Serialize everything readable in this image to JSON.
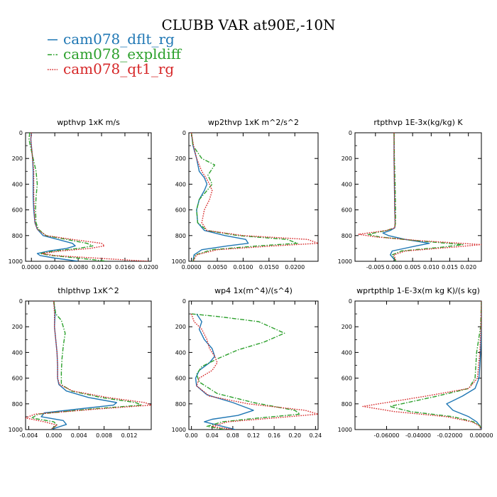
{
  "title": "CLUBB VAR at90E,-10N",
  "legend": [
    {
      "label": "cam078_dflt_rg",
      "color": "#1f77b4",
      "dash": "solid"
    },
    {
      "label": "cam078_expldiff",
      "color": "#2ca02c",
      "dash": "dashdot"
    },
    {
      "label": "cam078_qt1_rg",
      "color": "#d62728",
      "dash": "dotted"
    }
  ],
  "chart_data": [
    {
      "type": "line",
      "title": "wpthvp  1xK m/s",
      "xlim": [
        -0.001,
        0.0205
      ],
      "ylim": [
        1000,
        0
      ],
      "xticks": [
        "0.0000",
        "0.0040",
        "0.0080",
        "0.0120",
        "0.0160",
        "0.0200"
      ],
      "xtick_values": [
        0,
        0.004,
        0.008,
        0.012,
        0.016,
        0.02
      ],
      "yticks": [
        "0",
        "200",
        "400",
        "600",
        "800",
        "1000"
      ],
      "ytick_values": [
        0,
        200,
        400,
        600,
        800,
        1000
      ],
      "series": [
        {
          "name": "cam078_dflt_rg",
          "x": [
            0,
            -0.0001,
            0,
            0.0002,
            0.0003,
            0.0003,
            0.0003,
            0.0004,
            0.0006,
            0.001,
            0.002,
            0.0045,
            0.007,
            0.0075,
            0.006,
            0.003,
            0.001,
            0.0015,
            0.004,
            0.008
          ],
          "y": [
            0,
            50,
            100,
            200,
            300,
            400,
            500,
            600,
            700,
            750,
            800,
            830,
            860,
            880,
            900,
            920,
            940,
            955,
            975,
            1000
          ]
        },
        {
          "name": "cam078_expldiff",
          "x": [
            -0.0003,
            -0.0004,
            -0.0002,
            0.0003,
            0.0008,
            0.001,
            0.0008,
            0.0007,
            0.0008,
            0.0012,
            0.0025,
            0.006,
            0.0095,
            0.0105,
            0.008,
            0.004,
            0.0015,
            0.0035,
            0.008,
            0.013
          ],
          "y": [
            0,
            50,
            100,
            200,
            300,
            400,
            500,
            600,
            700,
            750,
            800,
            830,
            860,
            880,
            900,
            920,
            940,
            955,
            975,
            1000
          ]
        },
        {
          "name": "cam078_qt1_rg",
          "x": [
            0,
            -0.0001,
            0,
            0.0002,
            0.0004,
            0.0004,
            0.0004,
            0.0005,
            0.0006,
            0.001,
            0.0025,
            0.007,
            0.012,
            0.0125,
            0.01,
            0.005,
            0.0018,
            0.004,
            0.011,
            0.02
          ],
          "y": [
            0,
            50,
            100,
            200,
            300,
            400,
            500,
            600,
            700,
            750,
            800,
            830,
            860,
            880,
            900,
            920,
            940,
            955,
            975,
            1000
          ]
        }
      ]
    },
    {
      "type": "line",
      "title": "wp2thvp  1xK m^2/s^2",
      "xlim": [
        -0.0005,
        0.0245
      ],
      "ylim": [
        1000,
        0
      ],
      "xticks": [
        "0.0000",
        "0.0050",
        "0.0100",
        "0.0150",
        "0.0200"
      ],
      "xtick_values": [
        0,
        0.005,
        0.01,
        0.015,
        0.02
      ],
      "yticks": [
        "0",
        "200",
        "400",
        "600",
        "800",
        "1000"
      ],
      "ytick_values": [
        0,
        200,
        400,
        600,
        800,
        1000
      ],
      "series": [
        {
          "name": "cam078_dflt_rg",
          "x": [
            0,
            0.0003,
            0.001,
            0.0015,
            0.0025,
            0.003,
            0.0025,
            0.0015,
            0.001,
            0.0012,
            0.0025,
            0.0065,
            0.0105,
            0.011,
            0.007,
            0.002,
            0.0005,
            0.0003
          ],
          "y": [
            0,
            100,
            200,
            300,
            350,
            400,
            450,
            520,
            600,
            700,
            760,
            800,
            830,
            860,
            880,
            910,
            950,
            1000
          ]
        },
        {
          "name": "cam078_expldiff",
          "x": [
            0,
            0.0003,
            0.002,
            0.0045,
            0.0032,
            0.004,
            0.003,
            0.0015,
            0.001,
            0.0012,
            0.003,
            0.009,
            0.0185,
            0.0205,
            0.013,
            0.004,
            0.0008,
            0.0003
          ],
          "y": [
            0,
            100,
            200,
            250,
            330,
            400,
            450,
            520,
            600,
            700,
            760,
            800,
            830,
            860,
            880,
            910,
            950,
            1000
          ]
        },
        {
          "name": "cam078_qt1_rg",
          "x": [
            0,
            0.0004,
            0.001,
            0.002,
            0.0028,
            0.0035,
            0.004,
            0.0035,
            0.0025,
            0.002,
            0.003,
            0.01,
            0.0225,
            0.0245,
            0.016,
            0.005,
            0.001,
            0.0003
          ],
          "y": [
            0,
            100,
            200,
            300,
            350,
            400,
            450,
            520,
            600,
            700,
            760,
            800,
            830,
            860,
            880,
            910,
            950,
            1000
          ]
        }
      ]
    },
    {
      "type": "line",
      "title": "rtpthvp  1E-3x(kg/kg) K",
      "xlim": [
        -0.0105,
        0.0235
      ],
      "ylim": [
        1000,
        0
      ],
      "xticks": [
        "-0.005",
        "0.000",
        "0.005",
        "0.010",
        "0.015",
        "0.020"
      ],
      "xtick_values": [
        -0.005,
        0,
        0.005,
        0.01,
        0.015,
        0.02
      ],
      "yticks": [
        "0",
        "200",
        "400",
        "600",
        "800",
        "1000"
      ],
      "ytick_values": [
        0,
        200,
        400,
        600,
        800,
        1000
      ],
      "series": [
        {
          "name": "cam078_dflt_rg",
          "x": [
            0,
            0,
            0.0001,
            0.0002,
            0.0003,
            0.0002,
            -0.001,
            -0.003,
            -0.0015,
            0.003,
            0.0095,
            0.006,
            -0.0005,
            -0.001,
            0.0005
          ],
          "y": [
            0,
            200,
            400,
            600,
            700,
            740,
            760,
            780,
            800,
            830,
            860,
            880,
            920,
            950,
            1000
          ]
        },
        {
          "name": "cam078_expldiff",
          "x": [
            0,
            0.0001,
            0.0003,
            0.0004,
            0.0004,
            0.0002,
            -0.002,
            -0.007,
            -0.004,
            0.006,
            0.0185,
            0.013,
            0.002,
            -0.0005,
            0.0005
          ],
          "y": [
            0,
            200,
            400,
            600,
            700,
            740,
            760,
            790,
            810,
            840,
            870,
            890,
            920,
            950,
            1000
          ]
        },
        {
          "name": "cam078_qt1_rg",
          "x": [
            0,
            0,
            0.0001,
            0.0002,
            0.0003,
            0.0002,
            -0.002,
            -0.0095,
            -0.005,
            0.007,
            0.0235,
            0.016,
            0.003,
            0,
            0.0005
          ],
          "y": [
            0,
            200,
            400,
            600,
            700,
            740,
            760,
            790,
            810,
            840,
            870,
            890,
            920,
            950,
            1000
          ]
        }
      ]
    },
    {
      "type": "line",
      "title": "thlpthvp  1xK^2",
      "xlim": [
        -0.0045,
        0.0155
      ],
      "ylim": [
        1000,
        0
      ],
      "xticks": [
        "-0.004",
        "0.000",
        "0.004",
        "0.008",
        "0.012"
      ],
      "xtick_values": [
        -0.004,
        0,
        0.004,
        0.008,
        0.012
      ],
      "yticks": [
        "0",
        "200",
        "400",
        "600",
        "800",
        "1000"
      ],
      "ytick_values": [
        0,
        200,
        400,
        600,
        800,
        1000
      ],
      "series": [
        {
          "name": "cam078_dflt_rg",
          "x": [
            0,
            0.0002,
            0.0001,
            0.0003,
            0.0005,
            0.0006,
            0.0006,
            0.0008,
            0.002,
            0.0055,
            0.01,
            0.0095,
            0.004,
            -0.0015,
            -0.002,
            0.0015,
            0.002,
            -0.0005
          ],
          "y": [
            0,
            100,
            200,
            300,
            400,
            500,
            600,
            650,
            700,
            750,
            790,
            810,
            840,
            870,
            900,
            930,
            960,
            1000
          ]
        },
        {
          "name": "cam078_expldiff",
          "x": [
            0,
            0.0003,
            0.0012,
            0.0018,
            0.0015,
            0.0013,
            0.0012,
            0.0012,
            0.0028,
            0.0075,
            0.013,
            0.014,
            0.006,
            -0.0025,
            -0.0035,
            0,
            0.0005,
            -0.0005
          ],
          "y": [
            0,
            100,
            150,
            250,
            350,
            450,
            550,
            650,
            700,
            750,
            790,
            810,
            840,
            880,
            910,
            940,
            965,
            1000
          ]
        },
        {
          "name": "cam078_qt1_rg",
          "x": [
            0,
            0.0001,
            0.0001,
            0.0003,
            0.0005,
            0.0006,
            0.0006,
            0.0009,
            0.003,
            0.0085,
            0.0145,
            0.0155,
            0.007,
            -0.003,
            -0.0045,
            -0.0015,
            0.0005,
            -0.0005
          ],
          "y": [
            0,
            100,
            200,
            300,
            400,
            500,
            600,
            650,
            700,
            750,
            790,
            810,
            840,
            880,
            910,
            940,
            965,
            1000
          ]
        }
      ]
    },
    {
      "type": "line",
      "title": "wp4  1x(m^4)/(s^4)",
      "xlim": [
        -0.005,
        0.245
      ],
      "ylim": [
        1000,
        0
      ],
      "xticks": [
        "0.00",
        "0.04",
        "0.08",
        "0.12",
        "0.16",
        "0.20",
        "0.24"
      ],
      "xtick_values": [
        0,
        0.04,
        0.08,
        0.12,
        0.16,
        0.2,
        0.24
      ],
      "yticks": [
        "0",
        "200",
        "400",
        "600",
        "800",
        "1000"
      ],
      "ytick_values": [
        0,
        200,
        400,
        600,
        800,
        1000
      ],
      "series": [
        {
          "name": "cam078_dflt_rg",
          "x": [
            0.01,
            0.02,
            0.015,
            0.025,
            0.04,
            0.045,
            0.035,
            0.015,
            0.008,
            0.01,
            0.03,
            0.08,
            0.12,
            0.09,
            0.04,
            0.025,
            0.065,
            0.085
          ],
          "y": [
            100,
            160,
            220,
            300,
            370,
            430,
            480,
            540,
            600,
            660,
            730,
            790,
            850,
            890,
            920,
            940,
            980,
            1000
          ]
        },
        {
          "name": "cam078_expldiff",
          "x": [
            0,
            0.05,
            0.13,
            0.18,
            0.14,
            0.09,
            0.05,
            0.02,
            0.01,
            0.015,
            0.05,
            0.12,
            0.2,
            0.21,
            0.13,
            0.06,
            0.03,
            0.065
          ],
          "y": [
            100,
            120,
            160,
            250,
            320,
            380,
            450,
            510,
            570,
            630,
            720,
            790,
            850,
            880,
            910,
            940,
            975,
            1000
          ]
        },
        {
          "name": "cam078_qt1_rg",
          "x": [
            0,
            0.005,
            0.02,
            0.03,
            0.035,
            0.045,
            0.05,
            0.04,
            0.015,
            0.01,
            0.035,
            0.11,
            0.22,
            0.245,
            0.16,
            0.07,
            0.04,
            0.08
          ],
          "y": [
            100,
            160,
            220,
            300,
            370,
            430,
            480,
            540,
            600,
            660,
            740,
            800,
            850,
            880,
            910,
            940,
            975,
            1000
          ]
        }
      ]
    },
    {
      "type": "line",
      "title": "wprtpthlp  1-E-3x(m kg K)/(s kg)",
      "xlim": [
        -0.08,
        0.0
      ],
      "ylim": [
        1000,
        0
      ],
      "xticks": [
        "-0.06000",
        "-0.04000",
        "-0.02000",
        "0.00000"
      ],
      "xtick_values": [
        -0.06,
        -0.04,
        -0.02,
        0
      ],
      "yticks": [
        "0",
        "200",
        "400",
        "600",
        "800",
        "1000"
      ],
      "ytick_values": [
        0,
        200,
        400,
        600,
        800,
        1000
      ],
      "series": [
        {
          "name": "cam078_dflt_rg",
          "x": [
            0,
            0,
            -0.0005,
            -0.0015,
            -0.004,
            -0.012,
            -0.022,
            -0.018,
            -0.008,
            -0.003,
            -0.001,
            0
          ],
          "y": [
            0,
            200,
            400,
            600,
            680,
            740,
            800,
            850,
            900,
            940,
            970,
            1000
          ]
        },
        {
          "name": "cam078_expldiff",
          "x": [
            0,
            -0.0005,
            -0.003,
            -0.004,
            -0.008,
            -0.028,
            -0.058,
            -0.045,
            -0.018,
            -0.005,
            -0.001,
            0
          ],
          "y": [
            0,
            200,
            400,
            600,
            680,
            740,
            820,
            860,
            900,
            940,
            970,
            1000
          ]
        },
        {
          "name": "cam078_qt1_rg",
          "x": [
            0,
            -0.0003,
            -0.001,
            -0.0025,
            -0.008,
            -0.035,
            -0.075,
            -0.055,
            -0.022,
            -0.006,
            -0.0015,
            0
          ],
          "y": [
            0,
            200,
            400,
            600,
            680,
            740,
            820,
            860,
            900,
            940,
            970,
            1000
          ]
        }
      ]
    }
  ]
}
